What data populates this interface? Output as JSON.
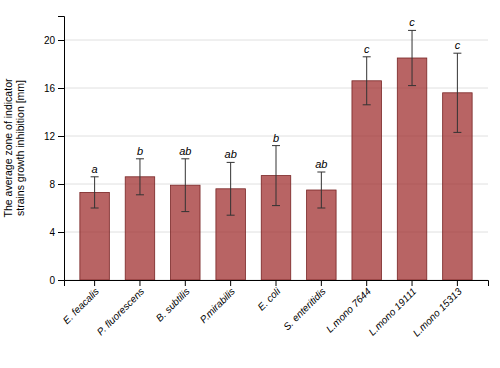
{
  "chart_data": {
    "type": "bar",
    "ylabel": "The average zone of indicator strains growth inhibition [mm]",
    "categories": [
      "E. feacalis",
      "P. fluorescens",
      "B. subtilis",
      "P.mirabilis",
      "E. coli",
      "S. enteritidis",
      "L.mono 7644",
      "L.mono 19111",
      "L.mono 15313"
    ],
    "values": [
      7.3,
      8.6,
      7.9,
      7.6,
      8.7,
      7.5,
      16.6,
      18.5,
      15.6
    ],
    "errors": [
      1.3,
      1.5,
      2.2,
      2.2,
      2.5,
      1.5,
      2.0,
      2.3,
      3.3
    ],
    "annotations": [
      "a",
      "b",
      "ab",
      "ab",
      "b",
      "ab",
      "c",
      "c",
      "c"
    ],
    "color": "#a03030",
    "ylim": [
      0,
      22
    ],
    "yticks": [
      0,
      4,
      8,
      12,
      16,
      20
    ],
    "grid": true
  }
}
